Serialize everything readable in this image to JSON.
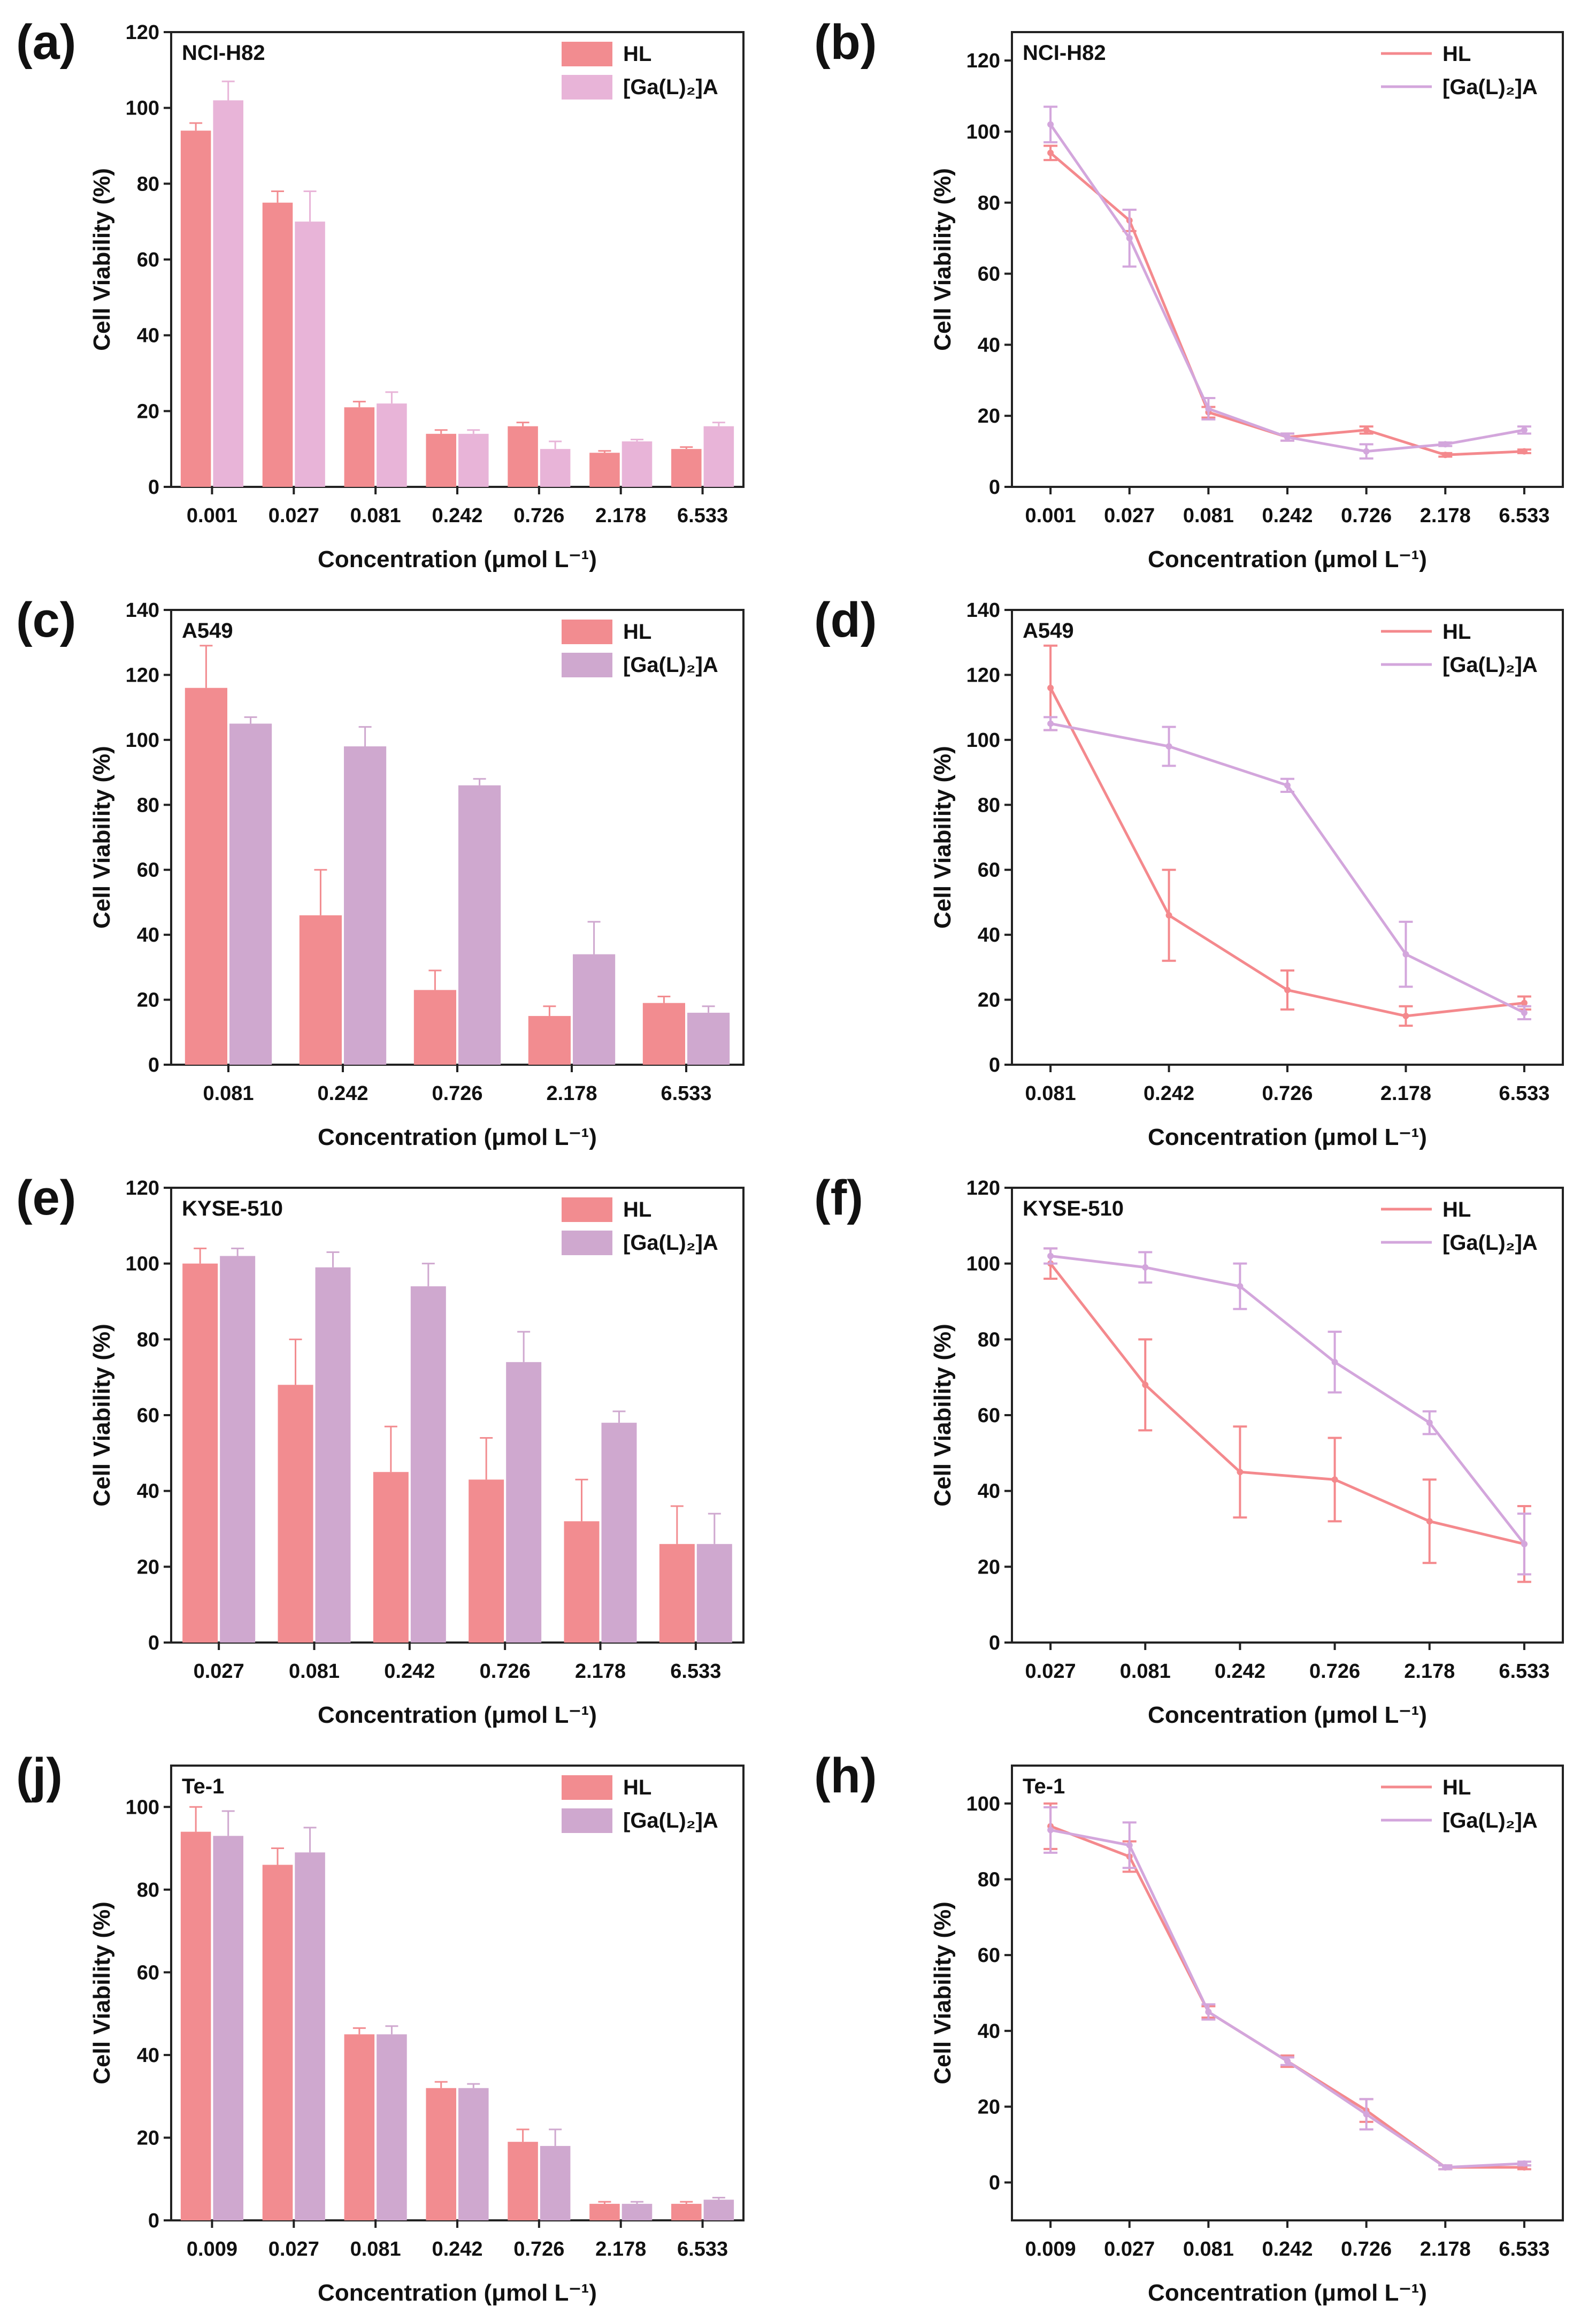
{
  "colors": {
    "hl_bar": "#f28c90",
    "ga_bar_a": "#e8b4d8",
    "ga_bar": "#cfa8cf",
    "hl_line": "#f4898d",
    "ga_line": "#d3a6dc",
    "axis": "#222222"
  },
  "chart_data": [
    {
      "panel": "(a)",
      "type": "bar",
      "cell_line": "NCI-H82",
      "ylabel": "Cell Viability (%)",
      "xlabel": "Concentration (μmol L⁻¹)",
      "categories": [
        "0.001",
        "0.027",
        "0.081",
        "0.242",
        "0.726",
        "2.178",
        "6.533"
      ],
      "ylim": [
        0,
        120
      ],
      "yticks": [
        0,
        20,
        40,
        60,
        80,
        100,
        120
      ],
      "series": [
        {
          "name": "HL",
          "values": [
            94,
            75,
            21,
            14,
            16,
            9,
            10
          ],
          "errors": [
            2,
            3,
            1.5,
            1,
            1,
            0.5,
            0.5
          ]
        },
        {
          "name": "[Ga(L)₂]A",
          "values": [
            102,
            70,
            22,
            14,
            10,
            12,
            16
          ],
          "errors": [
            5,
            8,
            3,
            1,
            2,
            0.5,
            1
          ]
        }
      ],
      "legend": "top-right"
    },
    {
      "panel": "(b)",
      "type": "line",
      "cell_line": "NCI-H82",
      "ylabel": "Cell Viability (%)",
      "xlabel": "Concentration (μmol L⁻¹)",
      "categories": [
        "0.001",
        "0.027",
        "0.081",
        "0.242",
        "0.726",
        "2.178",
        "6.533"
      ],
      "ylim": [
        0,
        128
      ],
      "yticks": [
        0,
        20,
        40,
        60,
        80,
        100,
        120
      ],
      "series": [
        {
          "name": "HL",
          "values": [
            94,
            75,
            21,
            14,
            16,
            9,
            10
          ],
          "errors": [
            2,
            3,
            1.5,
            1,
            1,
            0.5,
            0.5
          ]
        },
        {
          "name": "[Ga(L)₂]A",
          "values": [
            102,
            70,
            22,
            14,
            10,
            12,
            16
          ],
          "errors": [
            5,
            8,
            3,
            1,
            2,
            0.5,
            1
          ]
        }
      ],
      "legend": "top-right"
    },
    {
      "panel": "(c)",
      "type": "bar",
      "cell_line": "A549",
      "ylabel": "Cell Viability (%)",
      "xlabel": "Concentration (μmol L⁻¹)",
      "categories": [
        "0.081",
        "0.242",
        "0.726",
        "2.178",
        "6.533"
      ],
      "ylim": [
        0,
        140
      ],
      "yticks": [
        0,
        20,
        40,
        60,
        80,
        100,
        120,
        140
      ],
      "series": [
        {
          "name": "HL",
          "values": [
            116,
            46,
            23,
            15,
            19
          ],
          "errors": [
            13,
            14,
            6,
            3,
            2
          ]
        },
        {
          "name": "[Ga(L)₂]A",
          "values": [
            105,
            98,
            86,
            34,
            16
          ],
          "errors": [
            2,
            6,
            2,
            10,
            2
          ]
        }
      ],
      "legend": "top-right"
    },
    {
      "panel": "(d)",
      "type": "line",
      "cell_line": "A549",
      "ylabel": "Cell Viability (%)",
      "xlabel": "Concentration (μmol L⁻¹)",
      "categories": [
        "0.081",
        "0.242",
        "0.726",
        "2.178",
        "6.533"
      ],
      "ylim": [
        0,
        140
      ],
      "yticks": [
        0,
        20,
        40,
        60,
        80,
        100,
        120,
        140
      ],
      "series": [
        {
          "name": "HL",
          "values": [
            116,
            46,
            23,
            15,
            19
          ],
          "errors": [
            13,
            14,
            6,
            3,
            2
          ]
        },
        {
          "name": "[Ga(L)₂]A",
          "values": [
            105,
            98,
            86,
            34,
            16
          ],
          "errors": [
            2,
            6,
            2,
            10,
            2
          ]
        }
      ],
      "legend": "top-right"
    },
    {
      "panel": "(e)",
      "type": "bar",
      "cell_line": "KYSE-510",
      "ylabel": "Cell Viability (%)",
      "xlabel": "Concentration (μmol L⁻¹)",
      "categories": [
        "0.027",
        "0.081",
        "0.242",
        "0.726",
        "2.178",
        "6.533"
      ],
      "ylim": [
        0,
        120
      ],
      "yticks": [
        0,
        20,
        40,
        60,
        80,
        100,
        120
      ],
      "series": [
        {
          "name": "HL",
          "values": [
            100,
            68,
            45,
            43,
            32,
            26
          ],
          "errors": [
            4,
            12,
            12,
            11,
            11,
            10
          ]
        },
        {
          "name": "[Ga(L)₂]A",
          "values": [
            102,
            99,
            94,
            74,
            58,
            26
          ],
          "errors": [
            2,
            4,
            6,
            8,
            3,
            8
          ]
        }
      ],
      "legend": "top-right"
    },
    {
      "panel": "(f)",
      "type": "line",
      "cell_line": "KYSE-510",
      "ylabel": "Cell Viability (%)",
      "xlabel": "Concentration (μmol L⁻¹)",
      "categories": [
        "0.027",
        "0.081",
        "0.242",
        "0.726",
        "2.178",
        "6.533"
      ],
      "ylim": [
        0,
        120
      ],
      "yticks": [
        0,
        20,
        40,
        60,
        80,
        100,
        120
      ],
      "series": [
        {
          "name": "HL",
          "values": [
            100,
            68,
            45,
            43,
            32,
            26
          ],
          "errors": [
            4,
            12,
            12,
            11,
            11,
            10
          ]
        },
        {
          "name": "[Ga(L)₂]A",
          "values": [
            102,
            99,
            94,
            74,
            58,
            26
          ],
          "errors": [
            2,
            4,
            6,
            8,
            3,
            8
          ]
        }
      ],
      "legend": "top-right"
    },
    {
      "panel": "(j)",
      "type": "bar",
      "cell_line": "Te-1",
      "ylabel": "Cell Viability (%)",
      "xlabel": "Concentration (μmol L⁻¹)",
      "categories": [
        "0.009",
        "0.027",
        "0.081",
        "0.242",
        "0.726",
        "2.178",
        "6.533"
      ],
      "ylim": [
        0,
        110
      ],
      "yticks": [
        0,
        20,
        40,
        60,
        80,
        100
      ],
      "series": [
        {
          "name": "HL",
          "values": [
            94,
            86,
            45,
            32,
            19,
            4,
            4
          ],
          "errors": [
            6,
            4,
            1.5,
            1.5,
            3,
            0.5,
            0.5
          ]
        },
        {
          "name": "[Ga(L)₂]A",
          "values": [
            93,
            89,
            45,
            32,
            18,
            4,
            5
          ],
          "errors": [
            6,
            6,
            2,
            1,
            4,
            0.5,
            0.5
          ]
        }
      ],
      "legend": "top-right"
    },
    {
      "panel": "(h)",
      "type": "line",
      "cell_line": "Te-1",
      "ylabel": "Cell Viability (%)",
      "xlabel": "Concentration (μmol L⁻¹)",
      "categories": [
        "0.009",
        "0.027",
        "0.081",
        "0.242",
        "0.726",
        "2.178",
        "6.533"
      ],
      "ylim": [
        -10,
        110
      ],
      "yticks": [
        0,
        20,
        40,
        60,
        80,
        100
      ],
      "series": [
        {
          "name": "HL",
          "values": [
            94,
            86,
            45,
            32,
            19,
            4,
            4
          ],
          "errors": [
            6,
            4,
            1.5,
            1.5,
            3,
            0.5,
            0.5
          ]
        },
        {
          "name": "[Ga(L)₂]A",
          "values": [
            93,
            89,
            45,
            32,
            18,
            4,
            5
          ],
          "errors": [
            6,
            6,
            2,
            1,
            4,
            0.5,
            0.5
          ]
        }
      ],
      "legend": "top-right"
    }
  ]
}
